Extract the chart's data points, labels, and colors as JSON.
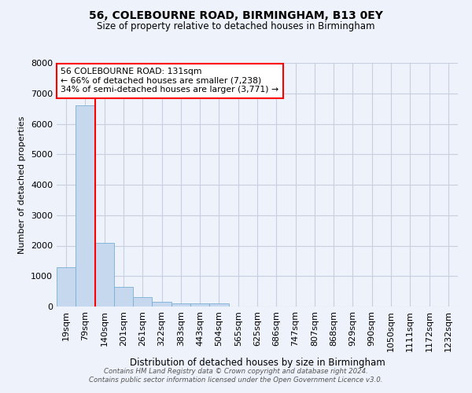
{
  "title": "56, COLEBOURNE ROAD, BIRMINGHAM, B13 0EY",
  "subtitle": "Size of property relative to detached houses in Birmingham",
  "bar_labels": [
    "19sqm",
    "79sqm",
    "140sqm",
    "201sqm",
    "261sqm",
    "322sqm",
    "383sqm",
    "443sqm",
    "504sqm",
    "565sqm",
    "625sqm",
    "686sqm",
    "747sqm",
    "807sqm",
    "868sqm",
    "929sqm",
    "990sqm",
    "1050sqm",
    "1111sqm",
    "1172sqm",
    "1232sqm"
  ],
  "bar_values": [
    1300,
    6600,
    2080,
    650,
    300,
    150,
    100,
    100,
    100,
    0,
    0,
    0,
    0,
    0,
    0,
    0,
    0,
    0,
    0,
    0,
    0
  ],
  "bar_color": "#c5d8ed",
  "bar_edge_color": "#7aafd4",
  "grid_color": "#c8cfe0",
  "background_color": "#eef2fa",
  "vline_color": "red",
  "ylabel": "Number of detached properties",
  "xlabel": "Distribution of detached houses by size in Birmingham",
  "ylim": [
    0,
    8000
  ],
  "yticks": [
    0,
    1000,
    2000,
    3000,
    4000,
    5000,
    6000,
    7000,
    8000
  ],
  "annotation_title": "56 COLEBOURNE ROAD: 131sqm",
  "annotation_line1": "← 66% of detached houses are smaller (7,238)",
  "annotation_line2": "34% of semi-detached houses are larger (3,771) →",
  "annotation_box_color": "white",
  "annotation_box_edge_color": "red",
  "footer_line1": "Contains HM Land Registry data © Crown copyright and database right 2024.",
  "footer_line2": "Contains public sector information licensed under the Open Government Licence v3.0.",
  "vline_x": 1.5
}
